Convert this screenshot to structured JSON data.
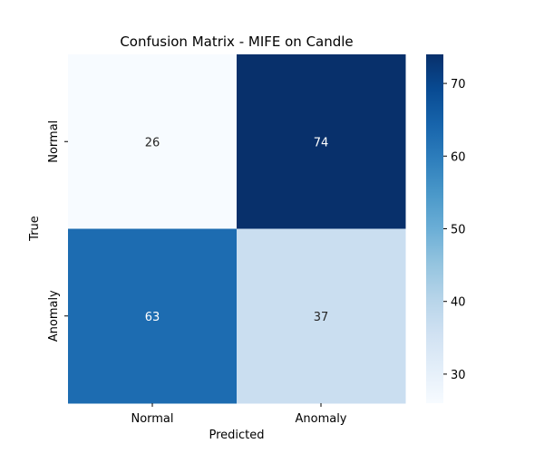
{
  "chart_data": {
    "type": "heatmap",
    "title": "Confusion Matrix - MIFE on Candle",
    "xlabel": "Predicted",
    "ylabel": "True",
    "x_categories": [
      "Normal",
      "Anomaly"
    ],
    "y_categories": [
      "Normal",
      "Anomaly"
    ],
    "values": [
      [
        26,
        74
      ],
      [
        63,
        37
      ]
    ],
    "colormap": "Blues",
    "colorbar": {
      "range": [
        26,
        74
      ],
      "ticks": [
        30,
        40,
        50,
        60,
        70
      ]
    },
    "grid": false
  }
}
